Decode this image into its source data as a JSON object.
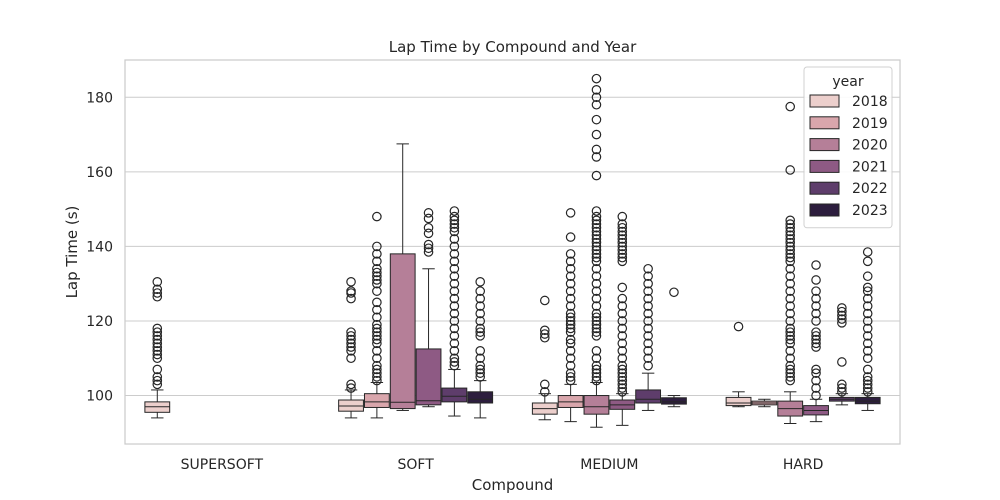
{
  "chart_data": {
    "type": "box",
    "title": "Lap Time by Compound and Year",
    "xlabel": "Compound",
    "ylabel": "Lap Time (s)",
    "categories": [
      "SUPERSOFT",
      "SOFT",
      "MEDIUM",
      "HARD"
    ],
    "ylim": [
      87,
      190
    ],
    "yticks": [
      100,
      120,
      140,
      160,
      180
    ],
    "grid": true,
    "legend": {
      "title": "year",
      "placement": "top-right"
    },
    "series": [
      {
        "name": "2018",
        "color": "#eccfcc",
        "boxes": [
          {
            "category": "SUPERSOFT",
            "whislo": 94,
            "q1": 95.5,
            "med": 97,
            "q3": 98.3,
            "whishi": 101.5,
            "fliers": [
              103,
              104,
              105,
              107,
              110,
              111,
              112,
              113,
              114,
              115,
              116,
              117,
              118,
              126.5,
              127.5,
              128.5,
              130.5
            ]
          },
          {
            "category": "SOFT",
            "whislo": 94,
            "q1": 95.8,
            "med": 97.2,
            "q3": 98.8,
            "whishi": 101.5,
            "fliers": [
              102,
              103,
              110,
              112,
              113,
              114,
              115,
              116,
              117,
              126,
              127.5,
              128,
              130.5
            ]
          },
          {
            "category": "MEDIUM",
            "whislo": 93.5,
            "q1": 95,
            "med": 96.5,
            "q3": 98,
            "whishi": 100.5,
            "fliers": [
              101,
              103,
              115.5,
              116.5,
              117.5,
              125.5
            ]
          },
          {
            "category": "HARD",
            "whislo": 97,
            "q1": 97.3,
            "med": 98,
            "q3": 99.5,
            "whishi": 101,
            "fliers": [
              118.5
            ]
          }
        ]
      },
      {
        "name": "2019",
        "color": "#d9a6ac",
        "boxes": [
          {
            "category": "SOFT",
            "whislo": 94,
            "q1": 96.8,
            "med": 98.3,
            "q3": 100.5,
            "whishi": 103.5,
            "fliers": [
              104,
              105,
              106,
              107,
              108,
              110,
              112,
              114,
              115,
              116,
              117,
              118,
              119,
              121,
              123,
              125,
              128,
              130,
              131,
              132,
              133,
              134,
              136,
              138,
              140,
              148
            ]
          },
          {
            "category": "MEDIUM",
            "whislo": 93,
            "q1": 96.8,
            "med": 98.3,
            "q3": 100,
            "whishi": 103,
            "fliers": [
              104,
              105,
              106,
              108,
              110,
              112,
              114,
              115,
              117,
              118,
              119,
              120,
              121,
              122,
              124,
              126,
              128,
              130,
              132,
              134,
              136,
              138,
              142.5,
              149
            ]
          },
          {
            "category": "HARD",
            "whislo": 97,
            "q1": 97.5,
            "med": 98,
            "q3": 98.5,
            "whishi": 99,
            "fliers": []
          }
        ]
      },
      {
        "name": "2020",
        "color": "#b57f98",
        "boxes": [
          {
            "category": "SOFT",
            "whislo": 96,
            "q1": 96.5,
            "med": 98.2,
            "q3": 138,
            "whishi": 167.5,
            "fliers": []
          },
          {
            "category": "MEDIUM",
            "whislo": 91.5,
            "q1": 95,
            "med": 97,
            "q3": 100,
            "whishi": 103.5,
            "fliers": [
              104,
              105,
              106,
              107,
              108,
              110,
              112,
              116,
              117,
              118,
              119,
              120,
              121,
              122,
              124,
              126,
              128,
              130,
              132,
              134,
              136,
              137,
              138,
              139,
              140,
              141,
              142,
              143,
              144,
              145,
              146,
              147,
              148,
              149.5,
              159,
              164,
              166,
              170,
              174,
              178,
              180,
              182,
              185
            ]
          },
          {
            "category": "HARD",
            "whislo": 92.5,
            "q1": 94.5,
            "med": 96.5,
            "q3": 98.5,
            "whishi": 101,
            "fliers": [
              104,
              105,
              106,
              107,
              108,
              110,
              112,
              114,
              115,
              116,
              117,
              118,
              120,
              122,
              124,
              126,
              128,
              130,
              132,
              134,
              136,
              137,
              138,
              139,
              140,
              141,
              142,
              143,
              144,
              145,
              146,
              147,
              160.5,
              177.5
            ]
          }
        ]
      },
      {
        "name": "2021",
        "color": "#8e5a84",
        "boxes": [
          {
            "category": "SOFT",
            "whislo": 97,
            "q1": 97.5,
            "med": 98.6,
            "q3": 112.5,
            "whishi": 134,
            "fliers": [
              138.5,
              139.5,
              140.5,
              143.5,
              145,
              147.5,
              149
            ]
          },
          {
            "category": "MEDIUM",
            "whislo": 92,
            "q1": 96.3,
            "med": 97.5,
            "q3": 98.8,
            "whishi": 100.5,
            "fliers": [
              101,
              102,
              103,
              104,
              105,
              106,
              107,
              108,
              110,
              112,
              114,
              116,
              118,
              120,
              122,
              124,
              126,
              129,
              136,
              137,
              138,
              139,
              140,
              141,
              142,
              143,
              144,
              145,
              146,
              148
            ]
          },
          {
            "category": "HARD",
            "whislo": 93,
            "q1": 94.8,
            "med": 96,
            "q3": 97.3,
            "whishi": 99,
            "fliers": [
              100,
              102,
              104,
              106,
              107,
              113,
              114,
              115,
              116,
              117,
              120,
              122,
              124,
              126,
              128,
              131,
              135
            ]
          }
        ]
      },
      {
        "name": "2022",
        "color": "#5e3d6b",
        "boxes": [
          {
            "category": "SOFT",
            "whislo": 94.5,
            "q1": 98.3,
            "med": 99.8,
            "q3": 102,
            "whishi": 107,
            "fliers": [
              108,
              109,
              110,
              112,
              114,
              116,
              118,
              120,
              122,
              124,
              126,
              128,
              130,
              132,
              134,
              136,
              138,
              140,
              142,
              144,
              145,
              146,
              147,
              148,
              149.5
            ]
          },
          {
            "category": "MEDIUM",
            "whislo": 96,
            "q1": 98,
            "med": 99,
            "q3": 101.5,
            "whishi": 106,
            "fliers": [
              108,
              110,
              112,
              114,
              116,
              118,
              120,
              122,
              124,
              126,
              128,
              130,
              132,
              134
            ]
          },
          {
            "category": "HARD",
            "whislo": 97.5,
            "q1": 98.5,
            "med": 99,
            "q3": 99.5,
            "whishi": 100.5,
            "fliers": [
              101,
              102,
              103,
              109,
              119.5,
              120.5,
              121.5,
              122.5,
              123.5
            ]
          }
        ]
      },
      {
        "name": "2023",
        "color": "#2d1e3e",
        "boxes": [
          {
            "category": "SOFT",
            "whislo": 94,
            "q1": 98,
            "med": 99,
            "q3": 101,
            "whishi": 104,
            "fliers": [
              105,
              106,
              107,
              108,
              110,
              112,
              116,
              117,
              118,
              120,
              122,
              124,
              126,
              128,
              130.5
            ]
          },
          {
            "category": "MEDIUM",
            "whislo": 97,
            "q1": 97.7,
            "med": 98.3,
            "q3": 99.4,
            "whishi": 100,
            "fliers": [
              127.7
            ]
          },
          {
            "category": "HARD",
            "whislo": 96,
            "q1": 97.8,
            "med": 98.5,
            "q3": 99.5,
            "whishi": 100.5,
            "fliers": [
              101,
              102,
              103,
              104,
              105,
              107,
              110,
              112,
              114,
              116,
              118,
              120,
              122,
              124,
              126,
              128,
              129,
              132,
              136,
              138.5
            ]
          }
        ]
      }
    ]
  }
}
